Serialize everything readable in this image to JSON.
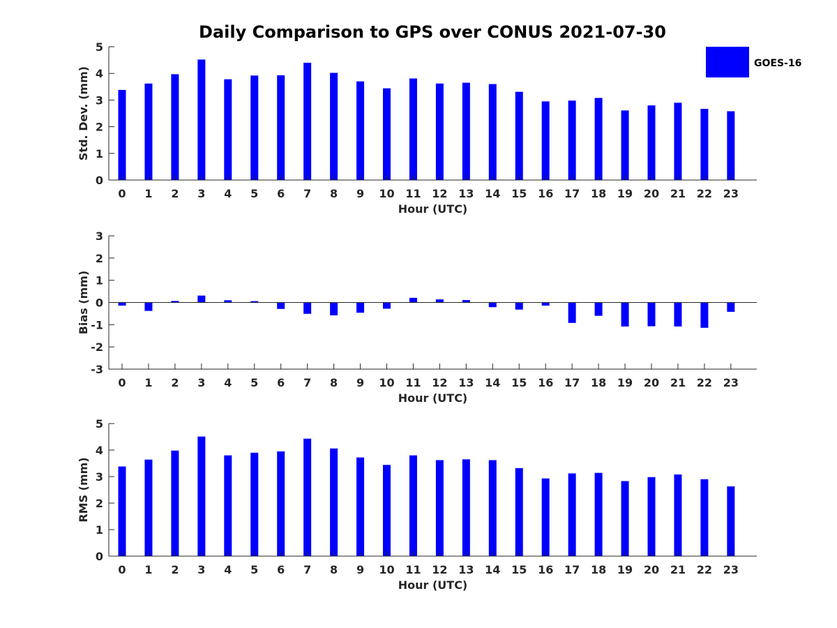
{
  "title": "Daily Comparison to GPS over CONUS 2021-07-30",
  "legend": {
    "label": "GOES-16",
    "color": "#0000ff",
    "placement": "top-right"
  },
  "chart_data": [
    {
      "type": "bar",
      "name": "std-dev",
      "title": "Daily Comparison to GPS over CONUS 2021-07-30",
      "series": [
        {
          "name": "GOES-16",
          "color": "#0000ff"
        }
      ],
      "categories": [
        "0",
        "1",
        "2",
        "3",
        "4",
        "5",
        "6",
        "7",
        "8",
        "9",
        "10",
        "11",
        "12",
        "13",
        "14",
        "15",
        "16",
        "17",
        "18",
        "19",
        "20",
        "21",
        "22",
        "23"
      ],
      "values": [
        3.38,
        3.62,
        3.97,
        4.52,
        3.78,
        3.92,
        3.93,
        4.4,
        4.02,
        3.7,
        3.44,
        3.81,
        3.62,
        3.65,
        3.6,
        3.31,
        2.95,
        2.98,
        3.08,
        2.61,
        2.8,
        2.9,
        2.67,
        2.58
      ],
      "xlabel": "Hour (UTC)",
      "ylabel": "Std. Dev. (mm)",
      "ylim": [
        0,
        5
      ],
      "yticks": [
        "0",
        "1",
        "2",
        "3",
        "4",
        "5"
      ]
    },
    {
      "type": "bar",
      "name": "bias",
      "series": [
        {
          "name": "GOES-16",
          "color": "#0000ff"
        }
      ],
      "categories": [
        "0",
        "1",
        "2",
        "3",
        "4",
        "5",
        "6",
        "7",
        "8",
        "9",
        "10",
        "11",
        "12",
        "13",
        "14",
        "15",
        "16",
        "17",
        "18",
        "19",
        "20",
        "21",
        "22",
        "23"
      ],
      "values": [
        -0.14,
        -0.38,
        0.07,
        0.31,
        0.1,
        0.06,
        -0.29,
        -0.51,
        -0.58,
        -0.46,
        -0.28,
        0.21,
        0.14,
        0.11,
        -0.21,
        -0.32,
        -0.14,
        -0.92,
        -0.6,
        -1.08,
        -1.07,
        -1.08,
        -1.14,
        -0.42
      ],
      "xlabel": "Hour (UTC)",
      "ylabel": "Bias (mm)",
      "ylim": [
        -3,
        3
      ],
      "yticks": [
        "-3",
        "-2",
        "-1",
        "0",
        "1",
        "2",
        "3"
      ]
    },
    {
      "type": "bar",
      "name": "rms",
      "series": [
        {
          "name": "GOES-16",
          "color": "#0000ff"
        }
      ],
      "categories": [
        "0",
        "1",
        "2",
        "3",
        "4",
        "5",
        "6",
        "7",
        "8",
        "9",
        "10",
        "11",
        "12",
        "13",
        "14",
        "15",
        "16",
        "17",
        "18",
        "19",
        "20",
        "21",
        "22",
        "23"
      ],
      "values": [
        3.38,
        3.64,
        3.98,
        4.51,
        3.8,
        3.9,
        3.95,
        4.43,
        4.06,
        3.72,
        3.44,
        3.8,
        3.62,
        3.65,
        3.62,
        3.32,
        2.93,
        3.12,
        3.14,
        2.83,
        2.98,
        3.08,
        2.9,
        2.63
      ],
      "xlabel": "Hour (UTC)",
      "ylabel": "RMS (mm)",
      "ylim": [
        0,
        5
      ],
      "yticks": [
        "0",
        "1",
        "2",
        "3",
        "4",
        "5"
      ]
    }
  ]
}
